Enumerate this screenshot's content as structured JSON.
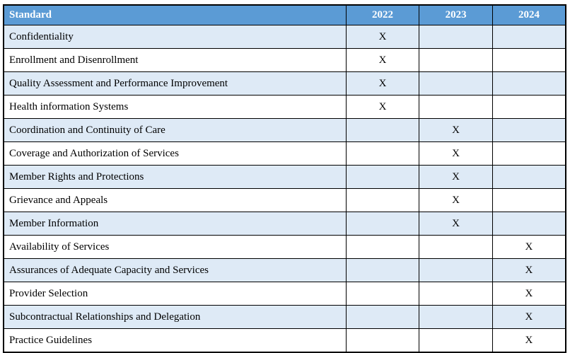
{
  "colors": {
    "header_bg": "#5B9BD5",
    "header_text": "#FFFFFF",
    "band_bg": "#DEEAF6",
    "row_bg": "#FFFFFF",
    "border": "#000000",
    "text": "#000000"
  },
  "table": {
    "columns": [
      "Standard",
      "2022",
      "2023",
      "2024"
    ],
    "mark_glyph": "X",
    "rows": [
      {
        "standard": "Confidentiality",
        "marks": [
          "X",
          "",
          ""
        ]
      },
      {
        "standard": "Enrollment and Disenrollment",
        "marks": [
          "X",
          "",
          ""
        ]
      },
      {
        "standard": "Quality Assessment and Performance Improvement",
        "marks": [
          "X",
          "",
          ""
        ]
      },
      {
        "standard": "Health information Systems",
        "marks": [
          "X",
          "",
          ""
        ]
      },
      {
        "standard": "Coordination and Continuity of Care",
        "marks": [
          "",
          "X",
          ""
        ]
      },
      {
        "standard": "Coverage and Authorization of Services",
        "marks": [
          "",
          "X",
          ""
        ]
      },
      {
        "standard": "Member Rights and Protections",
        "marks": [
          "",
          "X",
          ""
        ]
      },
      {
        "standard": "Grievance and Appeals",
        "marks": [
          "",
          "X",
          ""
        ]
      },
      {
        "standard": "Member Information",
        "marks": [
          "",
          "X",
          ""
        ]
      },
      {
        "standard": "Availability of Services",
        "marks": [
          "",
          "",
          "X"
        ]
      },
      {
        "standard": "Assurances of Adequate Capacity and Services",
        "marks": [
          "",
          "",
          "X"
        ]
      },
      {
        "standard": "Provider Selection",
        "marks": [
          "",
          "",
          "X"
        ]
      },
      {
        "standard": "Subcontractual Relationships and Delegation",
        "marks": [
          "",
          "",
          "X"
        ]
      },
      {
        "standard": "Practice Guidelines",
        "marks": [
          "",
          "",
          "X"
        ]
      }
    ]
  }
}
